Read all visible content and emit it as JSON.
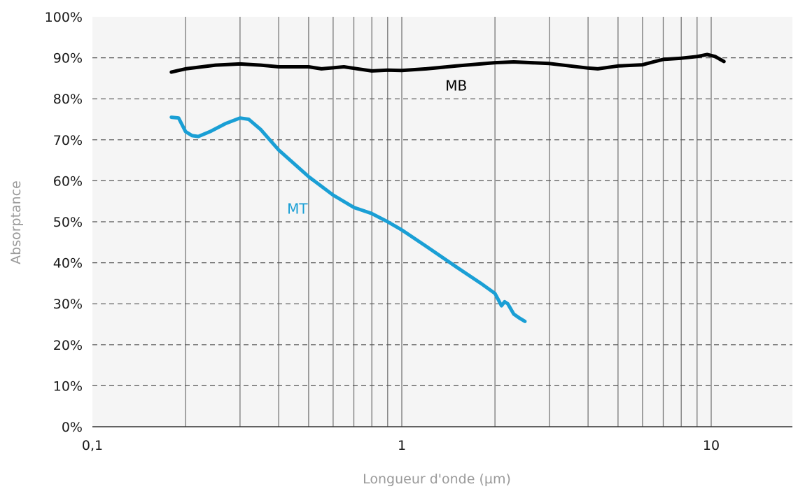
{
  "chart_data": {
    "type": "line",
    "title": "",
    "xlabel": "Longueur d'onde (µm)",
    "ylabel": "Absorptance",
    "x_scale": "log",
    "xlim": [
      0.1,
      20
    ],
    "ylim": [
      0,
      100
    ],
    "x_ticks": [
      {
        "value": 0.1,
        "label": "0,1"
      },
      {
        "value": 1,
        "label": "1"
      },
      {
        "value": 10,
        "label": "10"
      }
    ],
    "y_ticks": [
      {
        "value": 0,
        "label": "0%"
      },
      {
        "value": 10,
        "label": "10%"
      },
      {
        "value": 20,
        "label": "20%"
      },
      {
        "value": 30,
        "label": "30%"
      },
      {
        "value": 40,
        "label": "40%"
      },
      {
        "value": 50,
        "label": "50%"
      },
      {
        "value": 60,
        "label": "60%"
      },
      {
        "value": 70,
        "label": "70%"
      },
      {
        "value": 80,
        "label": "80%"
      },
      {
        "value": 90,
        "label": "90%"
      },
      {
        "value": 100,
        "label": "100%"
      }
    ],
    "grid": {
      "horizontal": "dashed",
      "vertical": "solid-minor-log"
    },
    "legend": "none",
    "series": [
      {
        "name": "MB",
        "color": "#000000",
        "x": [
          0.18,
          0.2,
          0.25,
          0.3,
          0.35,
          0.4,
          0.5,
          0.55,
          0.65,
          0.8,
          0.9,
          1.0,
          1.2,
          1.5,
          2.0,
          2.3,
          3.0,
          4.0,
          4.3,
          5.0,
          6.0,
          6.5,
          7.0,
          8.0,
          9.0,
          9.7,
          10.3,
          11.0
        ],
        "y": [
          86.5,
          87.3,
          88.2,
          88.5,
          88.2,
          87.8,
          87.8,
          87.3,
          87.8,
          86.8,
          87.0,
          86.9,
          87.3,
          88.0,
          88.8,
          89.0,
          88.6,
          87.5,
          87.3,
          88.0,
          88.3,
          89.0,
          89.6,
          89.9,
          90.3,
          90.8,
          90.3,
          89.1
        ]
      },
      {
        "name": "MT",
        "color": "#1a9fd5",
        "x": [
          0.18,
          0.19,
          0.2,
          0.21,
          0.22,
          0.24,
          0.27,
          0.3,
          0.32,
          0.35,
          0.4,
          0.5,
          0.6,
          0.7,
          0.8,
          0.9,
          1.0,
          1.2,
          1.5,
          1.8,
          2.0,
          2.05,
          2.1,
          2.15,
          2.2,
          2.3,
          2.4,
          2.5
        ],
        "y": [
          75.5,
          75.3,
          72.0,
          71.0,
          70.8,
          72.0,
          74.0,
          75.3,
          75.0,
          72.5,
          67.5,
          61.0,
          56.5,
          53.5,
          52.0,
          50.0,
          48.0,
          44.0,
          39.0,
          35.0,
          32.5,
          31.0,
          29.5,
          30.5,
          30.0,
          27.5,
          26.5,
          25.7
        ]
      }
    ],
    "annotations": [
      {
        "text": "MB",
        "x": 1.5,
        "y": 82
      },
      {
        "text": "MT",
        "x": 0.46,
        "y": 52
      }
    ]
  }
}
